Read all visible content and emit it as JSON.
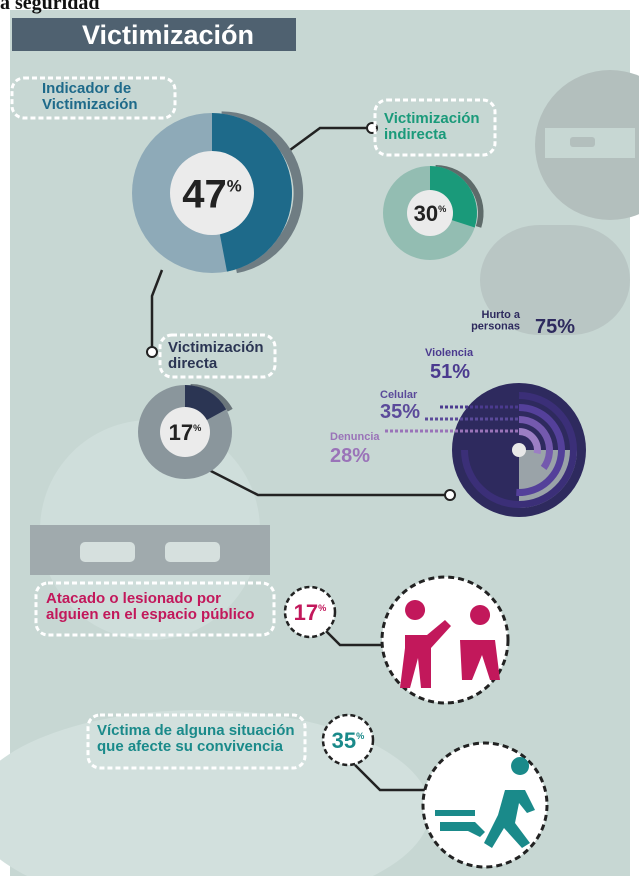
{
  "header_fragment": "a seguridad",
  "title": "Victimización",
  "unit": "%",
  "indicators": [
    {
      "label": [
        "Indicador de",
        "Victimización"
      ],
      "value": 47
    },
    {
      "label": [
        "Victimización",
        "indirecta"
      ],
      "value": 30
    },
    {
      "label": [
        "Victimización",
        "directa"
      ],
      "value": 17
    }
  ],
  "breakdown": [
    {
      "label": [
        "Hurto a",
        "personas"
      ],
      "value": 75
    },
    {
      "label": [
        "Violencia"
      ],
      "value": 51
    },
    {
      "label": [
        "Celular"
      ],
      "value": 35
    },
    {
      "label": [
        "Denuncia"
      ],
      "value": 28
    }
  ],
  "situations": [
    {
      "label": [
        "Atacado o lesionado por",
        "alguien en el espacio público"
      ],
      "value": 17
    },
    {
      "label": [
        "Víctima de alguna situación",
        "que afecte su convivencia"
      ],
      "value": 35
    }
  ]
}
